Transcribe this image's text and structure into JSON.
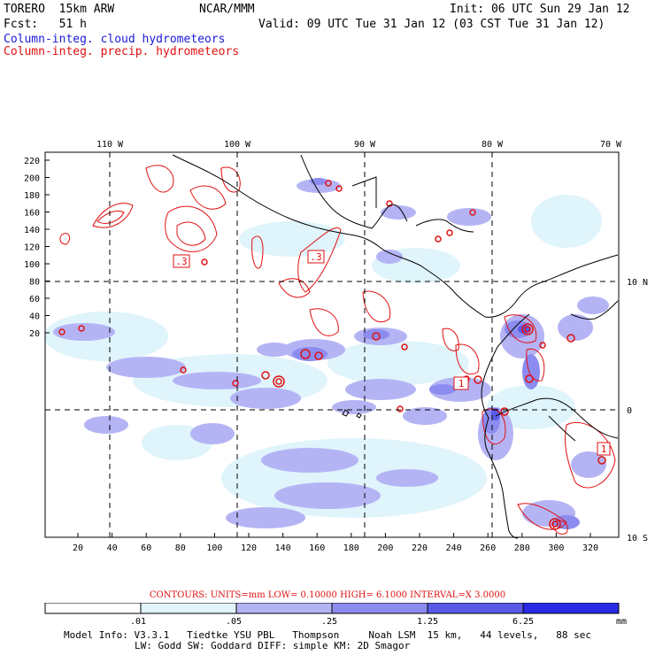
{
  "header": {
    "model": "TORERO  15km ARW",
    "org": "NCAR/MMM",
    "init": "Init: 06 UTC Sun 29 Jan 12",
    "fcst": "Fcst:   51 h",
    "valid": "Valid: 09 UTC Tue 31 Jan 12 (03 CST Tue 31 Jan 12)",
    "field_blue": "Column-integ. cloud hydrometeors",
    "field_red": "Column-integ. precip. hydrometeors"
  },
  "map": {
    "lon_labels": [
      "110 W",
      "100 W",
      "90 W",
      "80 W",
      "70 W"
    ],
    "lat_labels": [
      "10 N",
      "0",
      "10 S"
    ],
    "y_ticks": [
      "220",
      "200",
      "180",
      "160",
      "140",
      "120",
      "100",
      "80",
      "60",
      "40",
      "20"
    ],
    "x_ticks": [
      "20",
      "40",
      "60",
      "80",
      "100",
      "120",
      "140",
      "160",
      "180",
      "200",
      "220",
      "240",
      "260",
      "280",
      "300",
      "320"
    ],
    "contour_labels": [
      ".3",
      ".3",
      "1",
      "1"
    ]
  },
  "contours_info": "CONTOURS:  UNITS=mm  LOW= 0.10000     HIGH=  6.1000     INTERVAL=X  3.0000",
  "colorbar": {
    "levels": [
      ".01",
      ".05",
      ".25",
      "1.25",
      "6.25"
    ],
    "unit": "mm",
    "colors": [
      "#ffffff",
      "#dff4fb",
      "#b4b4f5",
      "#8c8cf0",
      "#5a5ae8",
      "#2b2be6"
    ]
  },
  "model_info": {
    "line1": "Model Info: V3.3.1   Tiedtke YSU PBL   Thompson     Noah LSM  15 km,   44 levels,   88 sec",
    "line2": "LW: Godd SW: Goddard DIFF: simple KM: 2D Smagor"
  }
}
